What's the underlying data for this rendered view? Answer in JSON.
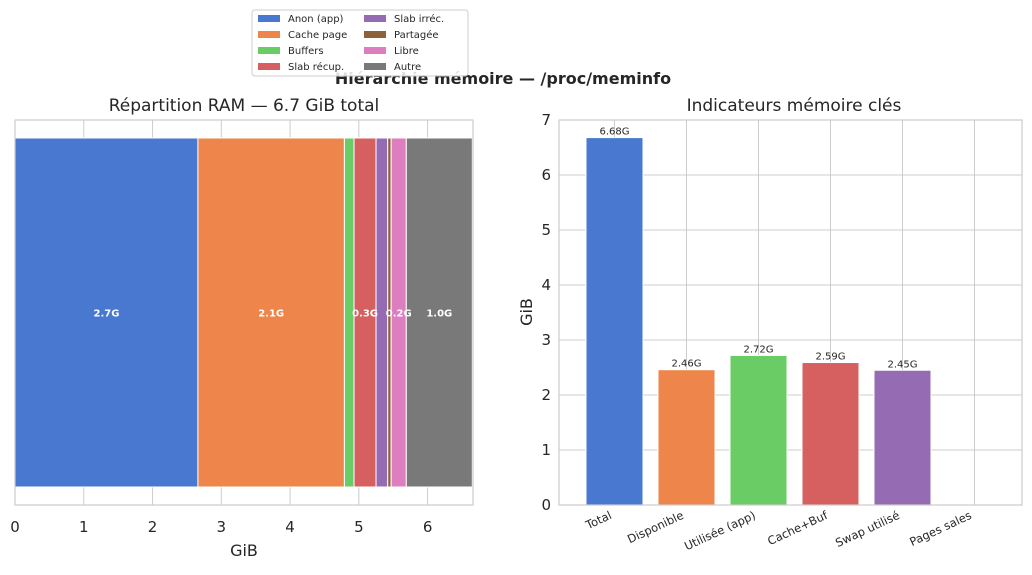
{
  "suptitle": "Hiérarchie mémoire — /proc/meminfo",
  "legend": {
    "placement": "top-center, above left chart",
    "entries": [
      {
        "label": "Anon (app)",
        "color": "#4878cf"
      },
      {
        "label": "Cache page",
        "color": "#ee854a"
      },
      {
        "label": "Buffers",
        "color": "#6acc64"
      },
      {
        "label": "Slab récup.",
        "color": "#d65f5f"
      },
      {
        "label": "Slab irréc.",
        "color": "#956cb4"
      },
      {
        "label": "Partagée",
        "color": "#8c613c"
      },
      {
        "label": "Libre",
        "color": "#dc7ec0"
      },
      {
        "label": "Autre",
        "color": "#797979"
      }
    ]
  },
  "chart_data": [
    {
      "type": "bar",
      "orientation": "horizontal-stacked",
      "title": "Répartition RAM — 6.7 GiB total",
      "xlabel": "GiB",
      "ylabel": "",
      "xlim": [
        0,
        6.66
      ],
      "xticks": [
        "0",
        "1",
        "2",
        "3",
        "4",
        "5",
        "6"
      ],
      "grid": true,
      "segments": [
        {
          "name": "Anon (app)",
          "value": 2.66,
          "label": "2.7G",
          "color": "#4878cf"
        },
        {
          "name": "Cache page",
          "value": 2.13,
          "label": "2.1G",
          "color": "#ee854a"
        },
        {
          "name": "Buffers",
          "value": 0.14,
          "label": "",
          "color": "#6acc64"
        },
        {
          "name": "Slab récup.",
          "value": 0.32,
          "label": "0.3G",
          "color": "#d65f5f"
        },
        {
          "name": "Slab irréc.",
          "value": 0.17,
          "label": "",
          "color": "#956cb4"
        },
        {
          "name": "Partagée",
          "value": 0.05,
          "label": "",
          "color": "#8c613c"
        },
        {
          "name": "Libre",
          "value": 0.22,
          "label": "0.2G",
          "color": "#dc7ec0"
        },
        {
          "name": "Autre",
          "value": 0.96,
          "label": "1.0G",
          "color": "#797979"
        }
      ]
    },
    {
      "type": "bar",
      "title": "Indicateurs mémoire clés",
      "xlabel": "",
      "ylabel": "GiB",
      "ylim": [
        0,
        7
      ],
      "yticks": [
        "0",
        "1",
        "2",
        "3",
        "4",
        "5",
        "6",
        "7"
      ],
      "grid": true,
      "categories": [
        "Total",
        "Disponible",
        "Utilisée (app)",
        "Cache+Buf",
        "Swap utilisé",
        "Pages sales"
      ],
      "values": [
        6.68,
        2.46,
        2.72,
        2.59,
        2.45,
        0
      ],
      "value_labels": [
        "6.68G",
        "2.46G",
        "2.72G",
        "2.59G",
        "2.45G",
        ""
      ],
      "colors": [
        "#4878cf",
        "#ee854a",
        "#6acc64",
        "#d65f5f",
        "#956cb4",
        "#8c613c"
      ]
    }
  ]
}
